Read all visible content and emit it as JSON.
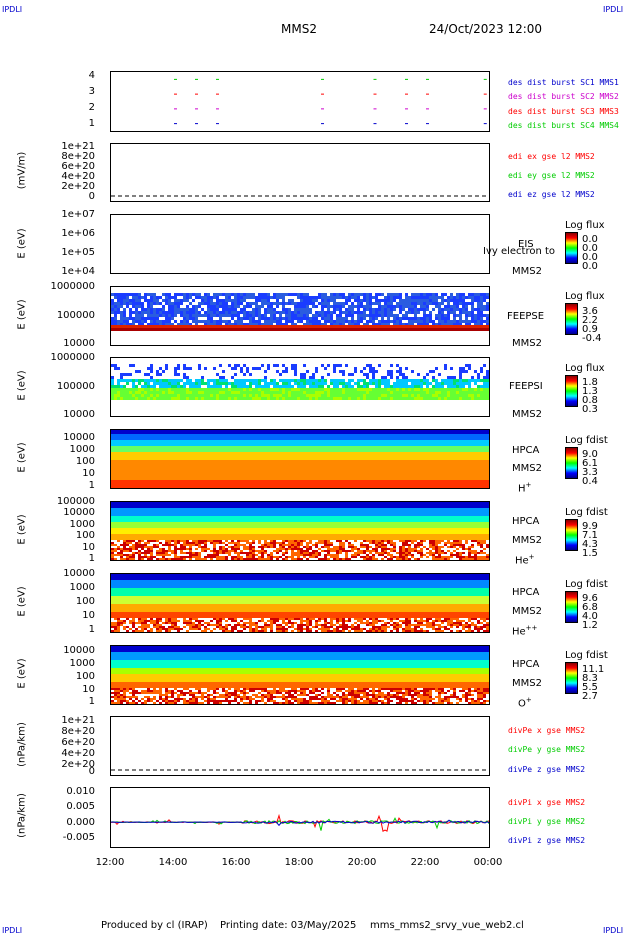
{
  "header": {
    "corner_left_top": "IPDLI",
    "corner_right_top": "IPDLI",
    "corner_left_bottom": "IPDLI",
    "corner_right_bottom": "IPDLI",
    "title": "MMS2",
    "date": "24/Oct/2023 12:00"
  },
  "footer": {
    "produced": "Produced by cl (IRAP)",
    "printing": "Printing date: 03/May/2025",
    "file": "mms_mms2_srvy_vue_web2.cl"
  },
  "colors": {
    "red": "#ff0000",
    "green": "#00cc00",
    "blue": "#0000cc",
    "magenta": "#cc00cc"
  },
  "chart_data": [
    {
      "type": "scatter",
      "panel": "burst-intervals",
      "ytick_labels": [
        "4",
        "3",
        "2",
        "1"
      ],
      "ylim": [
        0.5,
        4.5
      ],
      "legend": [
        "des dist burst SC1 MMS1",
        "des dist burst SC2 MMS2",
        "des dist burst SC3 MMS3",
        "des dist burst SC4 MMS4"
      ],
      "x": [
        "14:00",
        "14:40",
        "15:20",
        "18:40",
        "20:20",
        "21:20",
        "22:00",
        "23:50"
      ],
      "series": [
        {
          "name": "des dist burst SC1 MMS1",
          "y": 1
        },
        {
          "name": "des dist burst SC2 MMS2",
          "y": 2
        },
        {
          "name": "des dist burst SC3 MMS3",
          "y": 3
        },
        {
          "name": "des dist burst SC4 MMS4",
          "y": 4
        }
      ]
    },
    {
      "type": "line",
      "panel": "edi-e",
      "ylabel": "(mV/m)",
      "ytick_labels": [
        "1e+21",
        "8e+20",
        "6e+20",
        "4e+20",
        "2e+20",
        "0"
      ],
      "legend": [
        "edi ex gse l2 MMS2",
        "edi ey gse l2 MMS2",
        "edi ez gse l2 MMS2"
      ]
    },
    {
      "type": "heatmap",
      "panel": "eis",
      "ylabel": "E (eV)",
      "ytick_labels": [
        "1e+07",
        "1e+06",
        "1e+05",
        "1e+04"
      ],
      "instrument": "EIS",
      "probe": "MMS2",
      "overlay": "Ivy electron to",
      "cbar_title": "Log flux",
      "cbar_values": [
        "0.0",
        "0.0",
        "0.0",
        "0.0"
      ]
    },
    {
      "type": "heatmap",
      "panel": "feeps-e",
      "ylabel": "E (eV)",
      "ytick_labels": [
        "1000000",
        "100000",
        "10000"
      ],
      "instrument": "FEEPSE",
      "probe": "MMS2",
      "cbar_title": "Log flux",
      "cbar_values": [
        "3.6",
        "2.2",
        "0.9",
        "-0.4"
      ]
    },
    {
      "type": "heatmap",
      "panel": "feeps-i",
      "ylabel": "E (eV)",
      "ytick_labels": [
        "1000000",
        "100000",
        "10000"
      ],
      "instrument": "FEEPSI",
      "probe": "MMS2",
      "cbar_title": "Log flux",
      "cbar_values": [
        "1.8",
        "1.3",
        "0.8",
        "0.3"
      ]
    },
    {
      "type": "heatmap",
      "panel": "hpca-h",
      "ylabel": "E (eV)",
      "ytick_labels": [
        "10000",
        "1000",
        "100",
        "10",
        "1"
      ],
      "instrument": "HPCA",
      "probe": "MMS2",
      "species": "H",
      "charge": "+",
      "cbar_title": "Log fdist",
      "cbar_values": [
        "9.0",
        "6.1",
        "3.3",
        "0.4"
      ]
    },
    {
      "type": "heatmap",
      "panel": "hpca-he",
      "ylabel": "E (eV)",
      "ytick_labels": [
        "100000",
        "10000",
        "1000",
        "100",
        "10",
        "1"
      ],
      "instrument": "HPCA",
      "probe": "MMS2",
      "species": "He",
      "charge": "+",
      "cbar_title": "Log fdist",
      "cbar_values": [
        "9.9",
        "7.1",
        "4.3",
        "1.5"
      ]
    },
    {
      "type": "heatmap",
      "panel": "hpca-he2",
      "ylabel": "E (eV)",
      "ytick_labels": [
        "10000",
        "1000",
        "100",
        "10",
        "1"
      ],
      "instrument": "HPCA",
      "probe": "MMS2",
      "species": "He",
      "charge": "++",
      "cbar_title": "Log fdist",
      "cbar_values": [
        "9.6",
        "6.8",
        "4.0",
        "1.2"
      ]
    },
    {
      "type": "heatmap",
      "panel": "hpca-o",
      "ylabel": "E (eV)",
      "ytick_labels": [
        "10000",
        "1000",
        "100",
        "10",
        "1"
      ],
      "instrument": "HPCA",
      "probe": "MMS2",
      "species": "O",
      "charge": "+",
      "cbar_title": "Log fdist",
      "cbar_values": [
        "11.1",
        "8.3",
        "5.5",
        "2.7"
      ]
    },
    {
      "type": "line",
      "panel": "divpe",
      "ylabel": "(nPa/km)",
      "ytick_labels": [
        "1e+21",
        "8e+20",
        "6e+20",
        "4e+20",
        "2e+20",
        "0"
      ],
      "legend": [
        "divPe x gse MMS2",
        "divPe y gse MMS2",
        "divPe z gse MMS2"
      ]
    },
    {
      "type": "line",
      "panel": "divpi",
      "ylabel": "(nPa/km)",
      "ytick_labels": [
        "0.010",
        "0.005",
        "0.000",
        "-0.005"
      ],
      "ylim": [
        -0.008,
        0.011
      ],
      "legend": [
        "divPi x gse MMS2",
        "divPi y gse MMS2",
        "divPi z gse MMS2"
      ]
    }
  ],
  "xaxis": {
    "ticks": [
      "12:00",
      "14:00",
      "16:00",
      "18:00",
      "20:00",
      "22:00",
      "00:00"
    ]
  }
}
